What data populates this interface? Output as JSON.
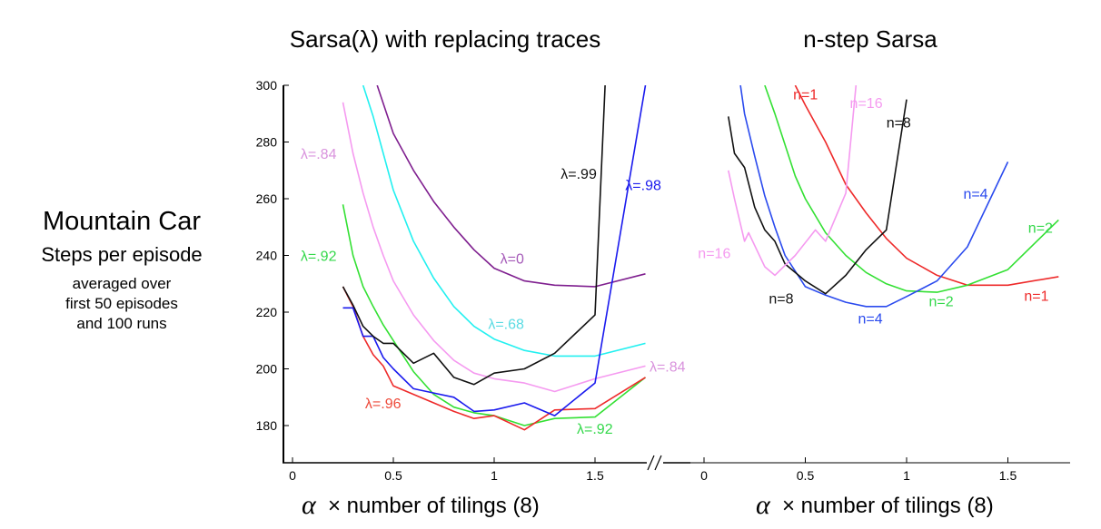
{
  "side_text": {
    "title": "Mountain Car",
    "subtitle": "Steps per episode",
    "note_lines": [
      "averaged over",
      "first 50 episodes",
      "and 100 runs"
    ]
  },
  "chart_data": [
    {
      "type": "line",
      "title": "Sarsa(λ) with replacing traces",
      "xlabel_symbol": "α",
      "xlabel": "× number of tilings (8)",
      "ylabel": "Steps per episode",
      "xlim": [
        0,
        1.8
      ],
      "ylim": [
        167,
        300
      ],
      "xticks": [
        0,
        0.5,
        1,
        1.5
      ],
      "xtick_labels": [
        "0",
        "0.5",
        "1",
        "1.5"
      ],
      "yticks": [
        180,
        200,
        220,
        240,
        260,
        280,
        300
      ],
      "ytick_labels": [
        "180",
        "200",
        "220",
        "240",
        "260",
        "280",
        "300"
      ],
      "grid": false,
      "series": [
        {
          "name": "λ=0",
          "color": "#7f1f8f",
          "x": [
            0.42,
            0.5,
            0.6,
            0.7,
            0.8,
            0.9,
            1.0,
            1.15,
            1.3,
            1.5,
            1.75
          ],
          "y": [
            300,
            283,
            270,
            259,
            250,
            242,
            235.5,
            231,
            229.5,
            229,
            233.5
          ]
        },
        {
          "name": "λ=.68",
          "color": "#22f0f0",
          "x": [
            0.35,
            0.4,
            0.45,
            0.5,
            0.6,
            0.7,
            0.8,
            0.9,
            1.0,
            1.15,
            1.3,
            1.5,
            1.75
          ],
          "y": [
            300,
            289,
            276,
            263,
            245,
            232,
            222,
            215,
            210.5,
            206.5,
            204.5,
            204.5,
            209
          ]
        },
        {
          "name": "λ=.84",
          "color": "#f59af0",
          "x": [
            0.25,
            0.3,
            0.35,
            0.4,
            0.45,
            0.5,
            0.6,
            0.7,
            0.8,
            0.9,
            1.0,
            1.15,
            1.3,
            1.5,
            1.75
          ],
          "y": [
            294,
            276,
            262,
            250,
            240,
            231,
            219,
            210,
            203,
            198.5,
            196.5,
            195,
            192,
            196.5,
            201
          ]
        },
        {
          "name": "λ=.92",
          "color": "#33e033",
          "x": [
            0.25,
            0.3,
            0.35,
            0.4,
            0.45,
            0.5,
            0.6,
            0.7,
            0.8,
            0.9,
            1.0,
            1.15,
            1.3,
            1.5,
            1.75
          ],
          "y": [
            258,
            240,
            229,
            222,
            215.5,
            210,
            199,
            191,
            186.5,
            184.5,
            183.5,
            180,
            182.5,
            183,
            197
          ]
        },
        {
          "name": "λ=.96",
          "color": "#ee2a2a",
          "x": [
            0.25,
            0.3,
            0.35,
            0.4,
            0.45,
            0.5,
            0.6,
            0.7,
            0.8,
            0.9,
            1.0,
            1.15,
            1.3,
            1.5,
            1.75
          ],
          "y": [
            229,
            222,
            211.5,
            205,
            201,
            194,
            191,
            188,
            185,
            182.5,
            183.5,
            178.5,
            185.5,
            186,
            197
          ]
        },
        {
          "name": "λ=.98",
          "color": "#1a1aee",
          "x": [
            0.25,
            0.3,
            0.35,
            0.4,
            0.45,
            0.5,
            0.6,
            0.7,
            0.8,
            0.9,
            1.0,
            1.15,
            1.3,
            1.5,
            1.75
          ],
          "y": [
            221.5,
            221.5,
            211.5,
            211.5,
            204,
            200,
            193,
            191.5,
            190,
            185,
            185.5,
            188,
            183.5,
            195,
            300
          ]
        },
        {
          "name": "λ=.99",
          "color": "#111111",
          "x": [
            0.25,
            0.3,
            0.35,
            0.4,
            0.45,
            0.5,
            0.6,
            0.7,
            0.8,
            0.9,
            1.0,
            1.15,
            1.3,
            1.5,
            1.55
          ],
          "y": [
            229,
            222.5,
            215,
            211.5,
            209,
            209,
            202,
            205.5,
            197,
            194.5,
            198.5,
            200,
            205.5,
            219,
            300
          ]
        }
      ],
      "annotations": [
        {
          "text": "λ=.84",
          "x": 0.04,
          "y": 276,
          "color": "#d993dd"
        },
        {
          "text": "λ=.92",
          "x": 0.04,
          "y": 240,
          "color": "#33d84a"
        },
        {
          "text": "λ=0",
          "x": 1.03,
          "y": 239,
          "color": "#a55ab8"
        },
        {
          "text": "λ=.68",
          "x": 0.97,
          "y": 216,
          "color": "#5adbe3"
        },
        {
          "text": "λ=.99",
          "x": 1.33,
          "y": 269,
          "color": "#111111"
        },
        {
          "text": "λ=.98",
          "x": 1.65,
          "y": 265,
          "color": "#1a1aee"
        },
        {
          "text": "λ=.84",
          "x": 1.77,
          "y": 201,
          "color": "#d993dd"
        },
        {
          "text": "λ=.96",
          "x": 0.36,
          "y": 188,
          "color": "#ee4a3a"
        },
        {
          "text": "λ=.92",
          "x": 1.41,
          "y": 179,
          "color": "#33d84a"
        }
      ]
    },
    {
      "type": "line",
      "title": "n-step Sarsa",
      "xlabel_symbol": "α",
      "xlabel": "× number of tilings (8)",
      "xlim": [
        0,
        1.8
      ],
      "ylim": [
        167,
        300
      ],
      "xticks": [
        0,
        0.5,
        1,
        1.5
      ],
      "xtick_labels": [
        "0",
        "0.5",
        "1",
        "1.5"
      ],
      "grid": false,
      "series": [
        {
          "name": "n=1",
          "color": "#ee2a2a",
          "x": [
            0.45,
            0.5,
            0.6,
            0.7,
            0.8,
            0.9,
            1.0,
            1.15,
            1.3,
            1.5,
            1.75
          ],
          "y": [
            300,
            293,
            280,
            265,
            255,
            246,
            239,
            233,
            229.5,
            229.5,
            232.5
          ]
        },
        {
          "name": "n=2",
          "color": "#33e033",
          "x": [
            0.3,
            0.35,
            0.4,
            0.45,
            0.5,
            0.6,
            0.7,
            0.8,
            0.9,
            1.0,
            1.15,
            1.3,
            1.5,
            1.75
          ],
          "y": [
            300,
            290,
            279,
            268,
            260,
            248,
            240,
            234,
            230,
            227.5,
            227,
            229.5,
            235,
            252.5
          ]
        },
        {
          "name": "n=4",
          "color": "#2a4aee",
          "x": [
            0.18,
            0.2,
            0.25,
            0.3,
            0.35,
            0.4,
            0.5,
            0.6,
            0.7,
            0.8,
            0.9,
            1.0,
            1.15,
            1.3,
            1.5
          ],
          "y": [
            300,
            290,
            275,
            261,
            250,
            240,
            229,
            226,
            223.5,
            222,
            222,
            225.5,
            231,
            243,
            273
          ]
        },
        {
          "name": "n=8",
          "color": "#111111",
          "x": [
            0.12,
            0.15,
            0.2,
            0.25,
            0.3,
            0.35,
            0.4,
            0.45,
            0.5,
            0.6,
            0.7,
            0.8,
            0.9,
            1.0
          ],
          "y": [
            289,
            276,
            271,
            257,
            249,
            245,
            237,
            234,
            231,
            226.5,
            233,
            242,
            249,
            295
          ]
        },
        {
          "name": "n=16",
          "color": "#f59af0",
          "x": [
            0.12,
            0.15,
            0.2,
            0.22,
            0.3,
            0.35,
            0.45,
            0.55,
            0.6,
            0.7,
            0.75
          ],
          "y": [
            270,
            260,
            245,
            248,
            236,
            233,
            240,
            249,
            245,
            262,
            300
          ]
        }
      ],
      "annotations": [
        {
          "text": "n=1",
          "x": 0.44,
          "y": 297,
          "color": "#ee2a2a"
        },
        {
          "text": "n=16",
          "x": 0.72,
          "y": 294,
          "color": "#f59af0"
        },
        {
          "text": "n=8",
          "x": 0.9,
          "y": 287,
          "color": "#111111"
        },
        {
          "text": "n=4",
          "x": 1.28,
          "y": 262,
          "color": "#2a4aee"
        },
        {
          "text": "n=2",
          "x": 1.6,
          "y": 250,
          "color": "#33d84a"
        },
        {
          "text": "n=16",
          "x": -0.03,
          "y": 241,
          "color": "#f59af0"
        },
        {
          "text": "n=8",
          "x": 0.32,
          "y": 225,
          "color": "#111111"
        },
        {
          "text": "n=4",
          "x": 0.76,
          "y": 218,
          "color": "#2a4aee"
        },
        {
          "text": "n=2",
          "x": 1.11,
          "y": 224,
          "color": "#33d84a"
        },
        {
          "text": "n=1",
          "x": 1.58,
          "y": 226,
          "color": "#ee2a2a"
        }
      ]
    }
  ]
}
